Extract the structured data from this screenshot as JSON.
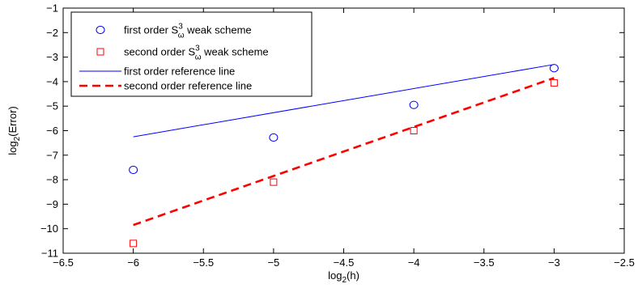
{
  "chart_data": {
    "type": "scatter",
    "xlabel": {
      "base": "log",
      "sub": "2",
      "rest": "(h)"
    },
    "ylabel": {
      "base": "log",
      "sub": "2",
      "rest": "(Error)"
    },
    "xlim": [
      -6.5,
      -2.5
    ],
    "ylim": [
      -11,
      -1
    ],
    "xticks": [
      -6.5,
      -6,
      -5.5,
      -5,
      -4.5,
      -4,
      -3.5,
      -3,
      -2.5
    ],
    "yticks": [
      -11,
      -10,
      -9,
      -8,
      -7,
      -6,
      -5,
      -4,
      -3,
      -2,
      -1
    ],
    "x_tick_labels": [
      "−6.5",
      "−6",
      "−5.5",
      "−5",
      "−4.5",
      "−4",
      "−3.5",
      "−3",
      "−2.5"
    ],
    "y_tick_labels": [
      "−11",
      "−10",
      "−9",
      "−8",
      "−7",
      "−6",
      "−5",
      "−4",
      "−3",
      "−2",
      "−1"
    ],
    "grid": false,
    "legend_position": "top-left",
    "series": [
      {
        "kind": "marker-circle",
        "color": "#0000ff",
        "legend": {
          "pre": "first order S",
          "sup": "3",
          "sub": "ω",
          "post": " weak scheme"
        },
        "x": [
          -6,
          -5,
          -4,
          -3
        ],
        "y": [
          -7.6,
          -6.28,
          -4.95,
          -3.45
        ]
      },
      {
        "kind": "marker-square",
        "color": "#ff0000",
        "legend": {
          "pre": "second order S",
          "sup": "3",
          "sub": "ω",
          "post": " weak scheme"
        },
        "x": [
          -6,
          -5,
          -4,
          -3
        ],
        "y": [
          -10.6,
          -8.1,
          -6.0,
          -4.05
        ]
      },
      {
        "kind": "line-solid",
        "color": "#0000ff",
        "legend": {
          "pre": "first order reference line"
        },
        "x": [
          -6,
          -3
        ],
        "y": [
          -6.25,
          -3.3
        ]
      },
      {
        "kind": "line-dashed",
        "color": "#ff0000",
        "legend": {
          "pre": "second order reference line"
        },
        "x": [
          -6,
          -3
        ],
        "y": [
          -9.85,
          -3.85
        ]
      }
    ]
  }
}
